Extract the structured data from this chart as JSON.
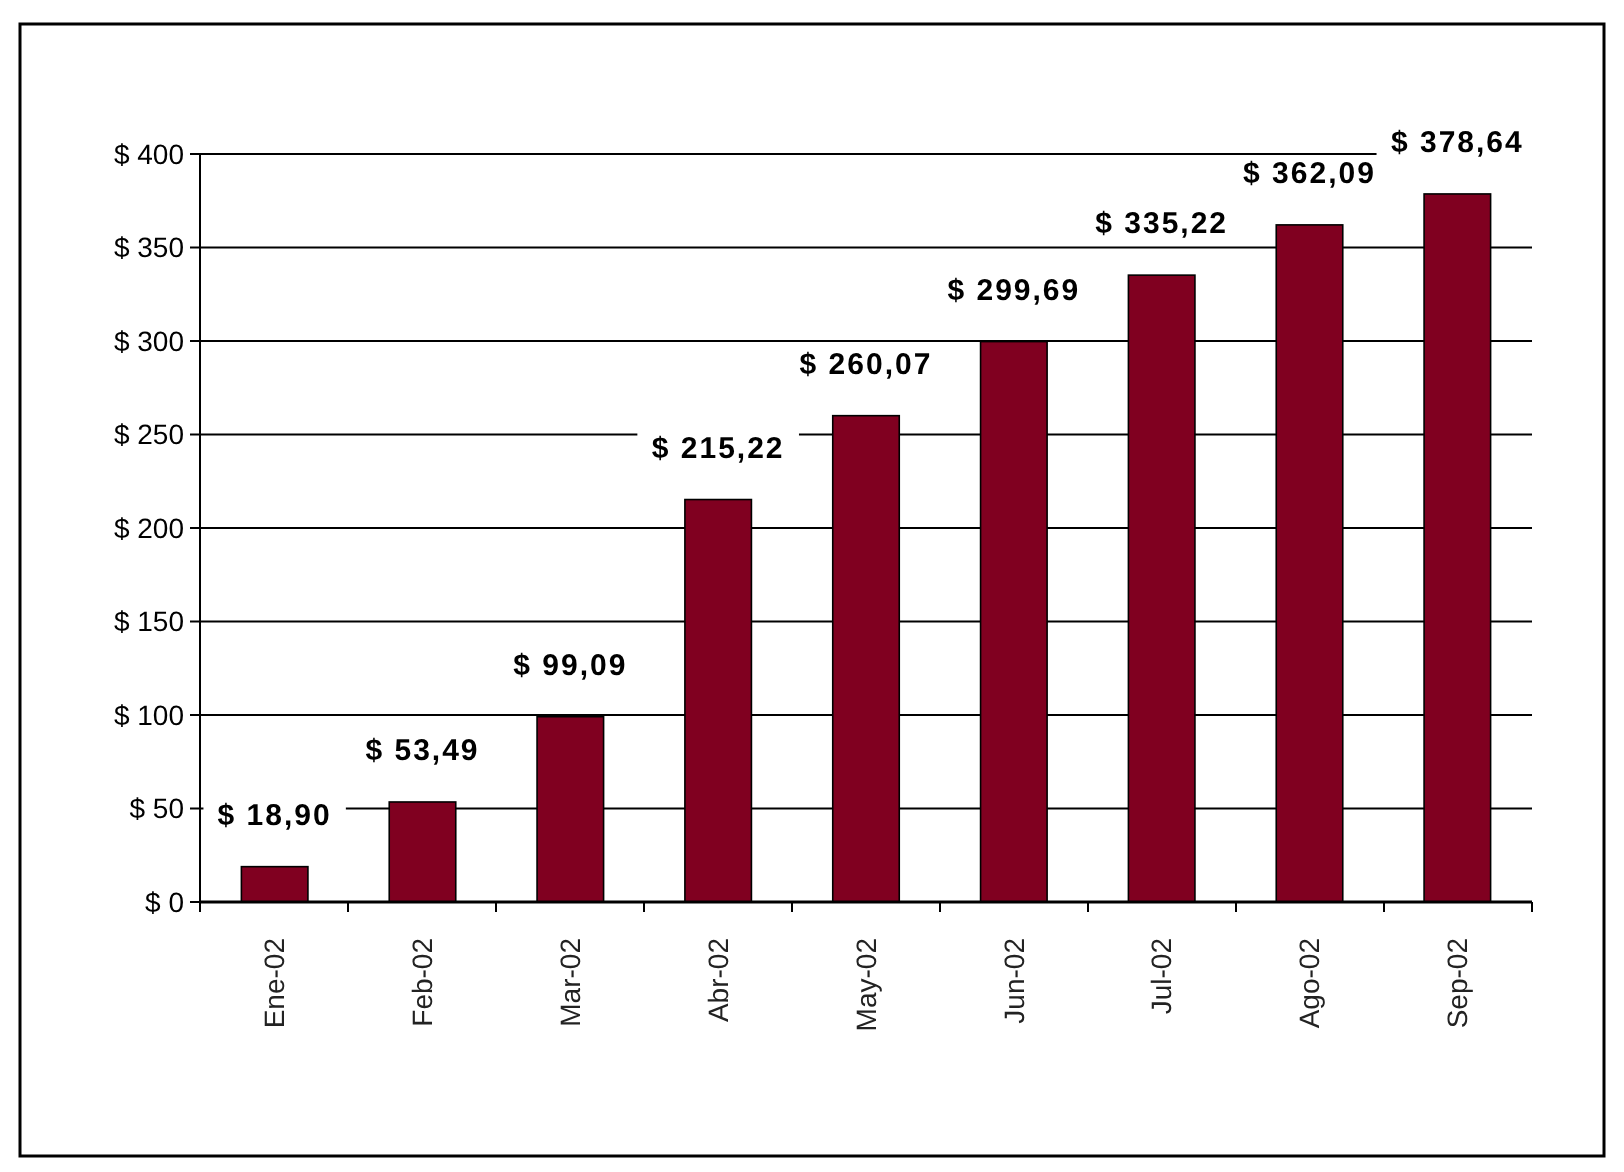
{
  "chart_data": {
    "type": "bar",
    "categories": [
      "Ene-02",
      "Feb-02",
      "Mar-02",
      "Abr-02",
      "May-02",
      "Jun-02",
      "Jul-02",
      "Ago-02",
      "Sep-02"
    ],
    "values": [
      18.9,
      53.49,
      99.09,
      215.22,
      260.07,
      299.69,
      335.22,
      362.09,
      378.64
    ],
    "value_labels": [
      "$ 18,90",
      "$ 53,49",
      "$ 99,09",
      "$ 215,22",
      "$ 260,07",
      "$ 299,69",
      "$ 335,22",
      "$ 362,09",
      "$ 378,64"
    ],
    "color": "#800020",
    "ylim": [
      0,
      400
    ],
    "yticks": [
      {
        "value": 0,
        "label": "$ 0"
      },
      {
        "value": 50,
        "label": "$ 50"
      },
      {
        "value": 100,
        "label": "$ 100"
      },
      {
        "value": 150,
        "label": "$ 150"
      },
      {
        "value": 200,
        "label": "$ 200"
      },
      {
        "value": 250,
        "label": "$ 250"
      },
      {
        "value": 300,
        "label": "$ 300"
      },
      {
        "value": 350,
        "label": "$ 350"
      },
      {
        "value": 400,
        "label": "$ 400"
      }
    ],
    "grid": "y"
  }
}
